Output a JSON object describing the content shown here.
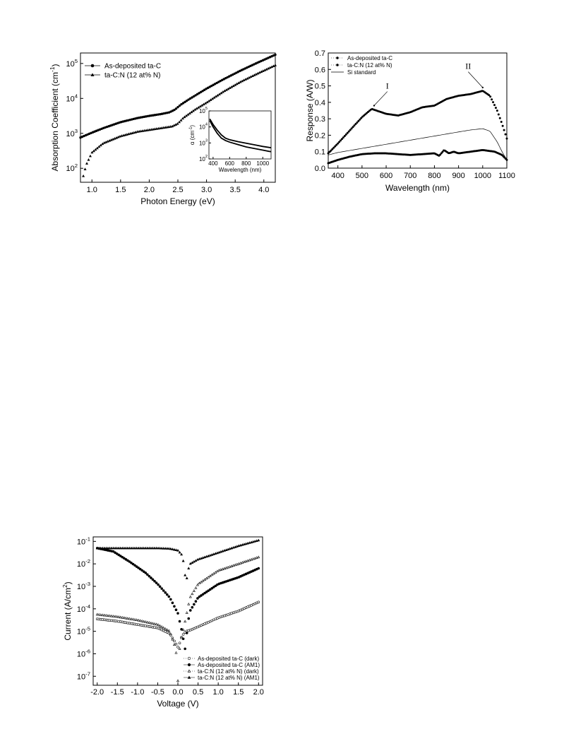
{
  "chart_data": [
    {
      "type": "line",
      "xlabel": "Photon Energy (eV)",
      "ylabel": "Absorption Coefficient (cm",
      "ylabel_sup": "-1",
      "ylabel_close": ")",
      "xlim": [
        0.8,
        4.2
      ],
      "ylim_log10": [
        1.6,
        5.3
      ],
      "yscale": "log",
      "xticks": [
        1.0,
        1.5,
        2.0,
        2.5,
        3.0,
        3.5,
        4.0
      ],
      "xtick_labels": [
        "1.0",
        "1.5",
        "2.0",
        "2.5",
        "3.0",
        "3.5",
        "4.0"
      ],
      "yticks_log10": [
        2,
        3,
        4,
        5
      ],
      "ytick_labels": [
        [
          "10",
          "2"
        ],
        [
          "10",
          "3"
        ],
        [
          "10",
          "4"
        ],
        [
          "10",
          "5"
        ]
      ],
      "legend_position": "upper-left",
      "series": [
        {
          "name": "As-deposited ta-C",
          "marker": "circle",
          "x": [
            0.8,
            1.0,
            1.2,
            1.5,
            1.8,
            2.0,
            2.2,
            2.35,
            2.45,
            2.55,
            2.7,
            3.0,
            3.3,
            3.6,
            3.9,
            4.2
          ],
          "y_log10": [
            2.88,
            3.02,
            3.15,
            3.32,
            3.44,
            3.5,
            3.55,
            3.6,
            3.68,
            3.82,
            3.98,
            4.28,
            4.55,
            4.8,
            5.03,
            5.25
          ]
        },
        {
          "name": "ta-C:N (12 at% N)",
          "marker": "triangle",
          "x": [
            0.85,
            0.9,
            1.0,
            1.2,
            1.5,
            1.8,
            2.0,
            2.2,
            2.4,
            2.5,
            2.6,
            2.8,
            3.0,
            3.3,
            3.6,
            3.9,
            4.2
          ],
          "y_log10": [
            1.78,
            2.1,
            2.45,
            2.72,
            2.92,
            3.05,
            3.1,
            3.15,
            3.2,
            3.28,
            3.45,
            3.68,
            3.88,
            4.2,
            4.48,
            4.72,
            4.95
          ]
        }
      ],
      "inset": {
        "xlabel": "Wavelength (nm)",
        "ylabel": "α (cm",
        "ylabel_sup": "-1",
        "ylabel_close": ")",
        "xlim": [
          350,
          1100
        ],
        "ylim_log10": [
          2,
          5
        ],
        "xticks": [
          400,
          600,
          800,
          1000
        ],
        "xtick_labels": [
          "400",
          "600",
          "800",
          "1000"
        ],
        "yticks_log10": [
          2,
          3,
          4,
          5
        ],
        "ytick_labels": [
          [
            "10",
            "2"
          ],
          [
            "10",
            "3"
          ],
          [
            "10",
            "4"
          ],
          [
            "10",
            "5"
          ]
        ],
        "series": [
          {
            "x": [
              360,
              400,
              450,
              500,
              550,
              600,
              700,
              800,
              900,
              1000,
              1100
            ],
            "y_log10": [
              4.5,
              4.15,
              3.8,
              3.5,
              3.3,
              3.2,
              3.08,
              2.98,
              2.88,
              2.78,
              2.7
            ]
          },
          {
            "x": [
              360,
              400,
              450,
              500,
              550,
              600,
              700,
              800,
              900,
              1000,
              1100
            ],
            "y_log10": [
              4.4,
              4.0,
              3.6,
              3.3,
              3.15,
              3.05,
              2.9,
              2.75,
              2.65,
              2.55,
              2.45
            ]
          }
        ]
      }
    },
    {
      "type": "scatter",
      "xlabel": "Wavelength (nm)",
      "ylabel": "Response (A/W)",
      "xlim": [
        360,
        1100
      ],
      "ylim": [
        0,
        0.7
      ],
      "xticks": [
        400,
        500,
        600,
        700,
        800,
        900,
        1000,
        1100
      ],
      "xtick_labels": [
        "400",
        "500",
        "600",
        "700",
        "800",
        "900",
        "1000",
        "1100"
      ],
      "yticks": [
        0,
        0.1,
        0.2,
        0.3,
        0.4,
        0.5,
        0.6,
        0.7
      ],
      "ytick_labels": [
        "0.0",
        "0.1",
        "0.2",
        "0.3",
        "0.4",
        "0.5",
        "0.6",
        "0.7"
      ],
      "legend_position": "upper-left",
      "annotations": [
        {
          "text": "I",
          "x": 605,
          "y": 0.5,
          "arrow_to": [
            550,
            0.38
          ]
        },
        {
          "text": "II",
          "x": 940,
          "y": 0.62,
          "arrow_to": [
            1000,
            0.49
          ]
        }
      ],
      "series": [
        {
          "name": "As-deposited ta-C",
          "marker": "dot",
          "x": [
            360,
            400,
            450,
            500,
            550,
            600,
            650,
            700,
            750,
            800,
            820,
            840,
            860,
            880,
            900,
            950,
            1000,
            1050,
            1080,
            1100
          ],
          "y": [
            0.03,
            0.05,
            0.07,
            0.085,
            0.09,
            0.09,
            0.085,
            0.08,
            0.085,
            0.09,
            0.075,
            0.11,
            0.09,
            0.1,
            0.09,
            0.1,
            0.11,
            0.1,
            0.08,
            0.05
          ]
        },
        {
          "name": "ta-C:N (12 at% N)",
          "marker": "dot",
          "x": [
            360,
            400,
            450,
            500,
            540,
            560,
            600,
            650,
            700,
            750,
            800,
            850,
            900,
            950,
            1000,
            1030,
            1060,
            1080,
            1100
          ],
          "y": [
            0.09,
            0.15,
            0.23,
            0.31,
            0.36,
            0.35,
            0.33,
            0.32,
            0.34,
            0.37,
            0.38,
            0.42,
            0.44,
            0.45,
            0.47,
            0.44,
            0.35,
            0.27,
            0.18
          ]
        },
        {
          "name": "Si standard",
          "marker": "line",
          "x": [
            360,
            400,
            500,
            600,
            700,
            800,
            900,
            950,
            1000,
            1030,
            1060,
            1080,
            1100
          ],
          "y": [
            0.08,
            0.095,
            0.12,
            0.145,
            0.17,
            0.195,
            0.22,
            0.232,
            0.24,
            0.225,
            0.16,
            0.1,
            0.05
          ]
        }
      ]
    },
    {
      "type": "scatter",
      "xlabel": "Voltage (V)",
      "ylabel": "Current (A/cm",
      "ylabel_sup": "2",
      "ylabel_close": ")",
      "xlim": [
        -2.1,
        2.1
      ],
      "ylim_log10": [
        -7.4,
        -0.8
      ],
      "yscale": "log",
      "xticks": [
        -2.0,
        -1.5,
        -1.0,
        -0.5,
        0.0,
        0.5,
        1.0,
        1.5,
        2.0
      ],
      "xtick_labels": [
        "-2.0",
        "-1.5",
        "-1.0",
        "-0.5",
        "0.0",
        "0.5",
        "1.0",
        "1.5",
        "2.0"
      ],
      "yticks_log10": [
        -7,
        -6,
        -5,
        -4,
        -3,
        -2,
        -1
      ],
      "ytick_labels": [
        [
          "10",
          "-7"
        ],
        [
          "10",
          "-6"
        ],
        [
          "10",
          "-5"
        ],
        [
          "10",
          "-4"
        ],
        [
          "10",
          "-3"
        ],
        [
          "10",
          "-2"
        ],
        [
          "10",
          "-1"
        ]
      ],
      "legend_position": "lower-right",
      "series": [
        {
          "name": "As-deposited ta-C (dark)",
          "marker": "open-circle",
          "x": [
            -2.0,
            -1.5,
            -1.0,
            -0.5,
            -0.2,
            -0.1,
            0.0,
            0.05,
            0.1,
            0.2,
            0.3,
            0.5,
            1.0,
            1.5,
            2.0
          ],
          "y_log10": [
            -4.45,
            -4.55,
            -4.7,
            -4.85,
            -5.1,
            -5.4,
            -5.7,
            -5.5,
            -5.2,
            -5.0,
            -4.95,
            -4.8,
            -4.4,
            -4.1,
            -3.7
          ]
        },
        {
          "name": "As-deposited ta-C (AM1)",
          "marker": "filled-circle",
          "x": [
            -2.0,
            -1.6,
            -1.2,
            -0.8,
            -0.5,
            -0.2,
            0.0,
            0.1,
            0.18,
            0.25,
            0.3,
            0.5,
            1.0,
            1.5,
            2.0
          ],
          "y_log10": [
            -1.3,
            -1.45,
            -1.9,
            -2.4,
            -2.9,
            -3.5,
            -4.2,
            -5.0,
            -5.8,
            -4.6,
            -4.1,
            -3.5,
            -2.9,
            -2.6,
            -2.2
          ]
        },
        {
          "name": "ta-C:N (12 at% N) (dark)",
          "marker": "open-triangle",
          "x": [
            -2.0,
            -1.5,
            -1.0,
            -0.5,
            -0.2,
            -0.05,
            0.0,
            0.05,
            0.15,
            0.3,
            0.5,
            1.0,
            1.5,
            2.0
          ],
          "y_log10": [
            -4.25,
            -4.35,
            -4.5,
            -4.7,
            -5.0,
            -5.8,
            -7.2,
            -5.6,
            -4.8,
            -3.5,
            -2.9,
            -2.3,
            -2.0,
            -1.7
          ]
        },
        {
          "name": "ta-C:N (12 at% N) (AM1)",
          "marker": "filled-triangle",
          "x": [
            -2.0,
            -1.5,
            -1.0,
            -0.5,
            -0.2,
            0.0,
            0.1,
            0.15,
            0.2,
            0.25,
            0.3,
            0.5,
            1.0,
            1.5,
            2.0
          ],
          "y_log10": [
            -1.3,
            -1.3,
            -1.3,
            -1.3,
            -1.32,
            -1.4,
            -1.6,
            -2.0,
            -2.9,
            -2.3,
            -2.0,
            -1.8,
            -1.5,
            -1.2,
            -0.95
          ]
        }
      ]
    }
  ]
}
